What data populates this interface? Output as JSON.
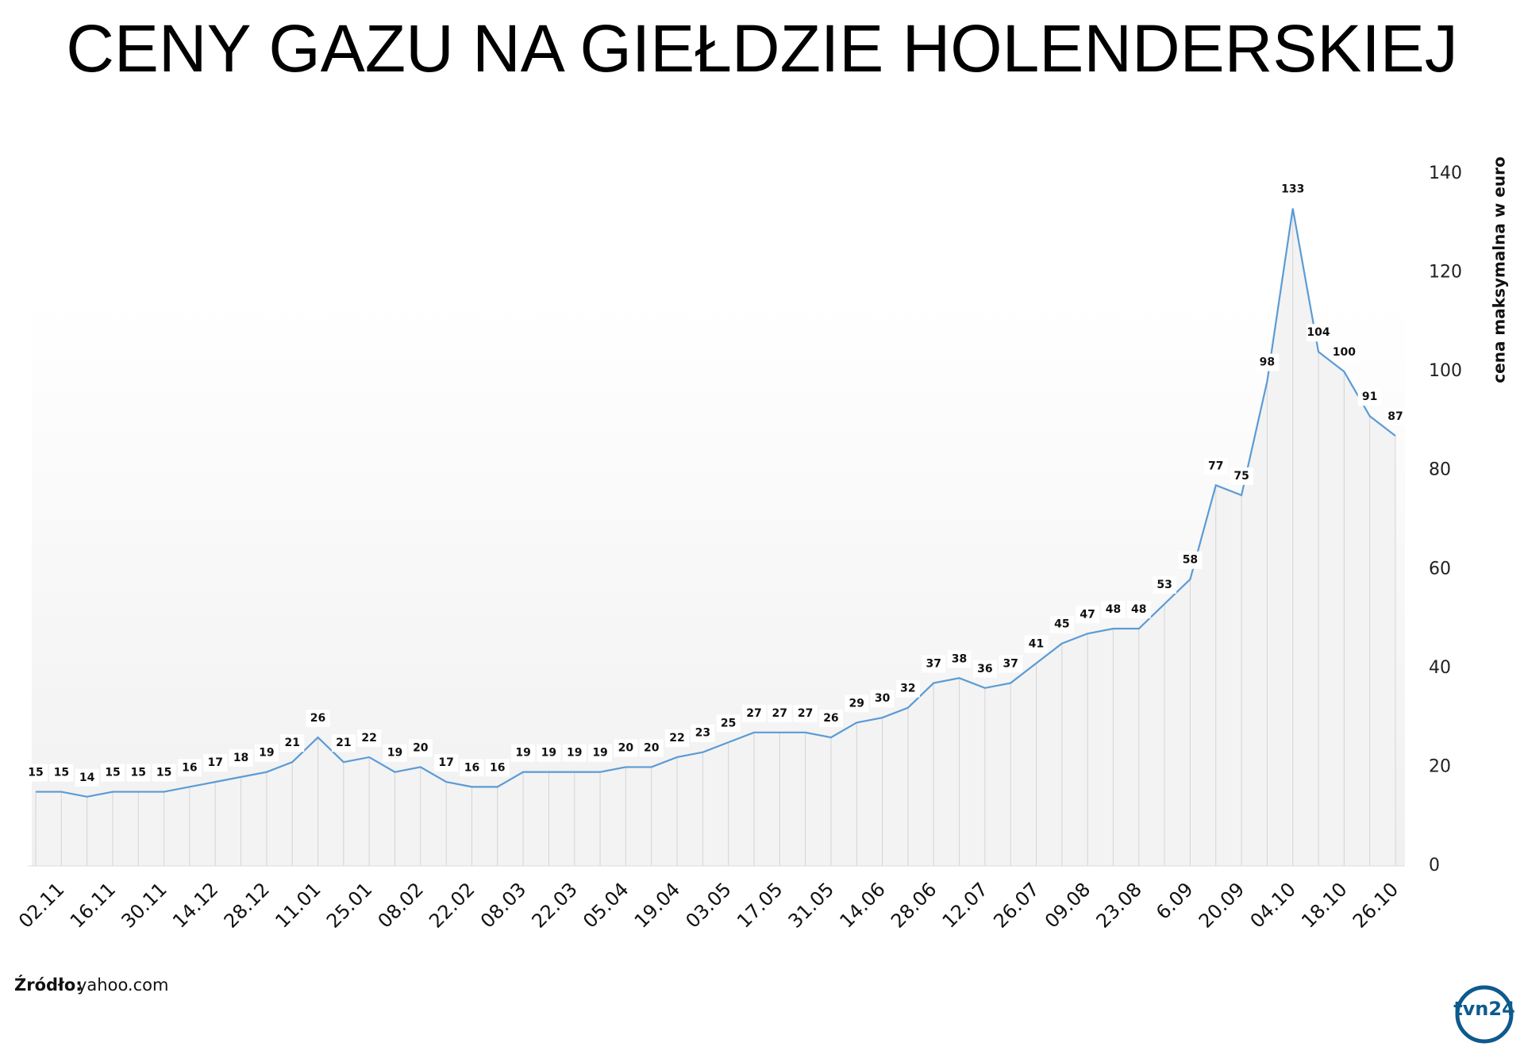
{
  "chart_data": {
    "type": "line",
    "title": "CENY GAZU NA GIEŁDZIE HOLENDERSKIEJ",
    "y_label": "cena maksymalna w euro",
    "source_label": "Źródło:",
    "source": "yahoo.com",
    "logo": "tvn24",
    "categories": [
      null,
      "02.11",
      null,
      "16.11",
      null,
      "30.11",
      null,
      "14.12",
      null,
      "28.12",
      null,
      "11.01",
      null,
      "25.01",
      null,
      "08.02",
      null,
      "22.02",
      null,
      "08.03",
      null,
      "22.03",
      null,
      "05.04",
      null,
      "19.04",
      null,
      "03.05",
      null,
      "17.05",
      null,
      "31.05",
      null,
      "14.06",
      null,
      "28.06",
      null,
      "12.07",
      null,
      "26.07",
      null,
      "09.08",
      null,
      "23.08",
      null,
      "6.09",
      null,
      "20.09",
      null,
      "04.10",
      null,
      "18.10",
      null,
      "26.10"
    ],
    "values": [
      15,
      15,
      14,
      15,
      15,
      15,
      16,
      17,
      18,
      19,
      21,
      26,
      21,
      22,
      19,
      20,
      17,
      16,
      16,
      19,
      19,
      19,
      19,
      20,
      20,
      22,
      23,
      25,
      27,
      27,
      27,
      26,
      29,
      30,
      32,
      37,
      38,
      36,
      37,
      41,
      45,
      47,
      48,
      48,
      53,
      58,
      77,
      75,
      98,
      133,
      104,
      100,
      91,
      87
    ],
    "color": "#5b9bd5",
    "ylim": [
      0,
      140
    ],
    "yticks": [
      0,
      20,
      40,
      60,
      80,
      100,
      120,
      140
    ],
    "y_axis_side": "right"
  }
}
